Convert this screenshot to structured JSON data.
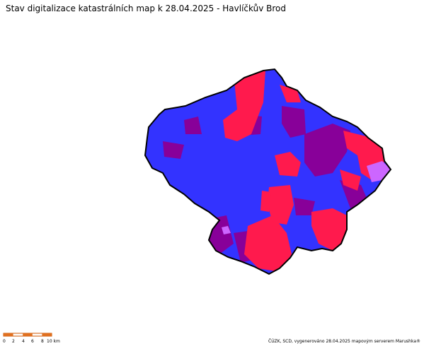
{
  "header": {
    "title": "Stav digitalizace katastrálních map k 28.04.2025 - Havlíčkův Brod"
  },
  "scale_bar": {
    "labels": [
      "0",
      "2",
      "4",
      "6",
      "8",
      "10 km"
    ]
  },
  "footer": {
    "credit": "ČÚZK, SCD, vygenerováno 28.04.2025 mapovým serverem Marushka®"
  }
}
